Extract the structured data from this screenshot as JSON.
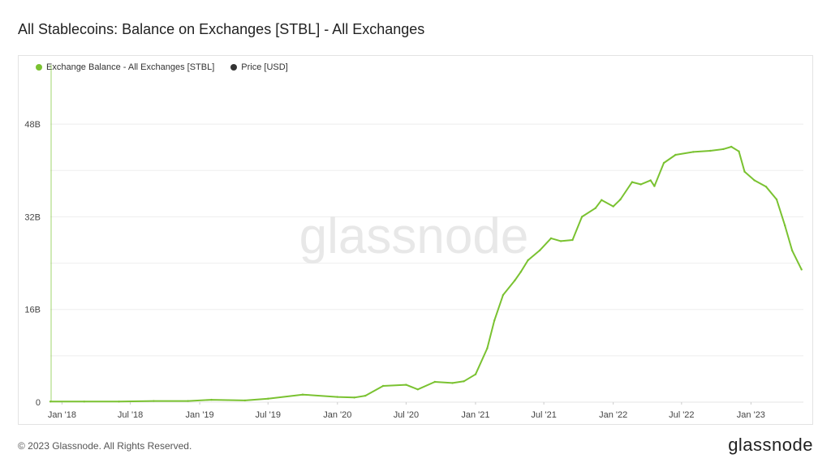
{
  "title": "All Stablecoins: Balance on Exchanges [STBL] - All Exchanges",
  "footer": {
    "copyright": "© 2023 Glassnode. All Rights Reserved.",
    "logo": "glassnode"
  },
  "watermark": "glassnode",
  "legend": [
    {
      "label": "Exchange Balance - All Exchanges [STBL]",
      "color": "#7ac231"
    },
    {
      "label": "Price [USD]",
      "color": "#333333"
    }
  ],
  "chart_data": {
    "type": "line",
    "title": "All Stablecoins: Balance on Exchanges [STBL] - All Exchanges",
    "y_ticks": [
      "0",
      "16B",
      "32B",
      "48B"
    ],
    "ylim": [
      0,
      56
    ],
    "y_unit": "billion USD",
    "x_ticks": [
      "Jan '18",
      "Jul '18",
      "Jan '19",
      "Jul '19",
      "Jan '20",
      "Jul '20",
      "Jan '21",
      "Jul '21",
      "Jan '22",
      "Jul '22",
      "Jan '23"
    ],
    "xlim": [
      "2017-12-01",
      "2023-05-20"
    ],
    "grid": true,
    "legend_position": "top-left",
    "series": [
      {
        "name": "Exchange Balance - All Exchanges [STBL]",
        "color": "#7ac231",
        "x": [
          "2017-12-01",
          "2018-03-01",
          "2018-06-01",
          "2018-09-01",
          "2018-12-01",
          "2019-02-01",
          "2019-05-01",
          "2019-07-01",
          "2019-10-01",
          "2020-01-01",
          "2020-02-15",
          "2020-03-15",
          "2020-05-01",
          "2020-07-01",
          "2020-08-01",
          "2020-09-15",
          "2020-11-01",
          "2020-12-01",
          "2021-01-01",
          "2021-02-01",
          "2021-02-20",
          "2021-03-15",
          "2021-04-15",
          "2021-05-01",
          "2021-05-20",
          "2021-06-20",
          "2021-07-20",
          "2021-08-15",
          "2021-09-15",
          "2021-10-10",
          "2021-11-15",
          "2021-12-01",
          "2022-01-01",
          "2022-01-20",
          "2022-02-20",
          "2022-03-15",
          "2022-04-10",
          "2022-04-20",
          "2022-05-15",
          "2022-06-15",
          "2022-08-01",
          "2022-09-15",
          "2022-10-20",
          "2022-11-10",
          "2022-11-30",
          "2022-12-15",
          "2023-01-10",
          "2023-02-10",
          "2023-03-10",
          "2023-04-01",
          "2023-04-20",
          "2023-05-15"
        ],
        "values": [
          0.1,
          0.1,
          0.1,
          0.2,
          0.2,
          0.4,
          0.3,
          0.6,
          1.3,
          0.9,
          0.8,
          1.1,
          2.8,
          3.0,
          2.2,
          3.5,
          3.3,
          3.6,
          4.8,
          9.3,
          14.1,
          18.5,
          21.0,
          22.5,
          24.5,
          26.2,
          28.3,
          27.8,
          28.0,
          32.0,
          33.5,
          34.9,
          33.8,
          35.0,
          38.0,
          37.6,
          38.3,
          37.3,
          41.3,
          42.7,
          43.2,
          43.4,
          43.7,
          44.1,
          43.3,
          39.8,
          38.3,
          37.2,
          35.0,
          30.5,
          26.2,
          22.9
        ]
      },
      {
        "name": "Price [USD]",
        "color": "#333333",
        "x": [],
        "values": []
      }
    ]
  }
}
